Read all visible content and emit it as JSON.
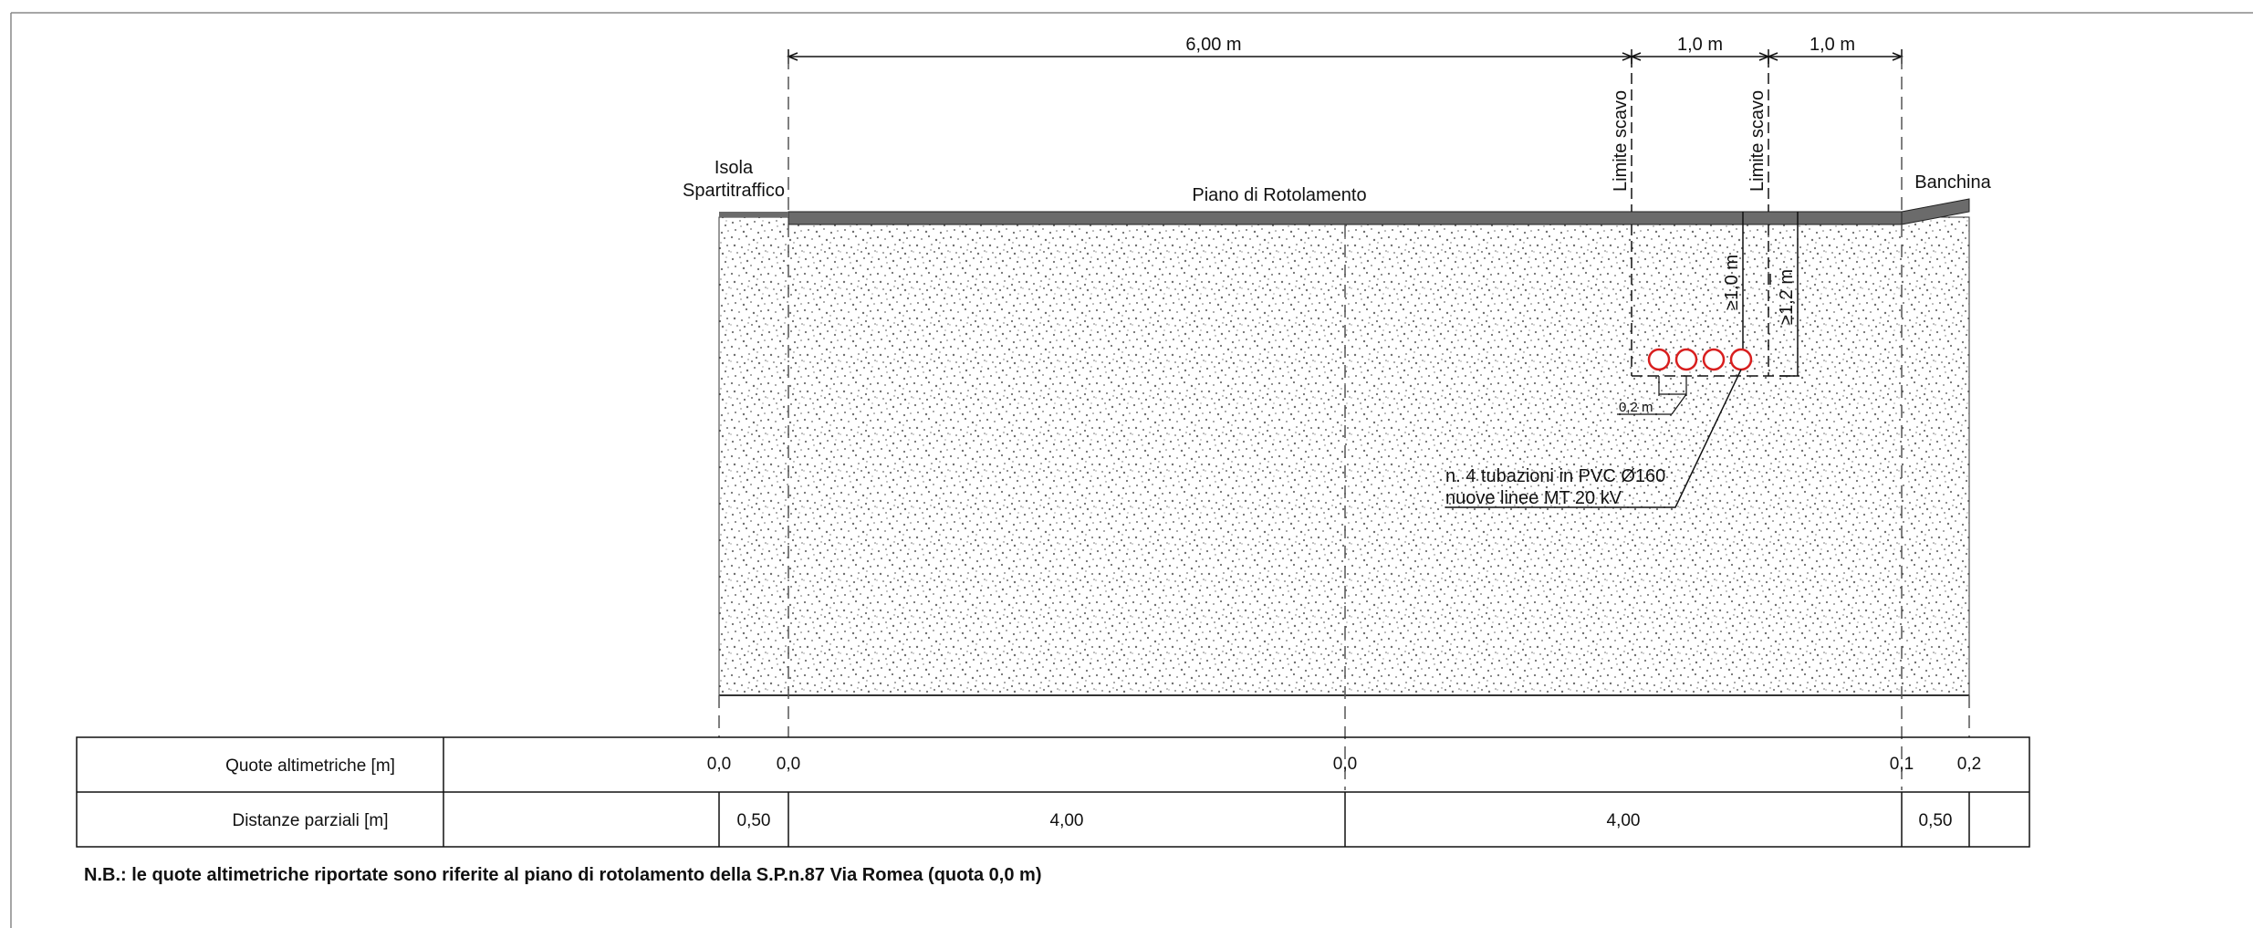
{
  "dimensions": {
    "top_width": "6,00 m",
    "trench_width": "1,0 m",
    "offset_width": "1,0 m",
    "depth_min": "≥1,0 m",
    "depth_max": "≥1,2 m",
    "pipe_spacing": "0,2 m"
  },
  "labels": {
    "isola_line1": "Isola",
    "isola_line2": "Spartitraffico",
    "road_surface": "Piano di Rotolamento",
    "shoulder": "Banchina",
    "trench_limit_left": "Limite scavo",
    "trench_limit_right": "Limite scavo",
    "pipes_line1": "n. 4 tubazioni in PVC Ø160",
    "pipes_line2": "nuove linee MT 20 kV"
  },
  "table": {
    "row1_label": "Quote altimetriche [m]",
    "row2_label": "Distanze parziali [m]",
    "elevations": [
      "0,0",
      "0,0",
      "0,0",
      "0,1",
      "0,2"
    ],
    "distances": [
      "0,50",
      "4,00",
      "4,00",
      "0,50"
    ]
  },
  "pipes": {
    "count": 4,
    "color": "#d81e1e"
  },
  "note": "N.B.: le quote altimetriche riportate sono riferite al piano di rotolamento della S.P.n.87 Via Romea (quota 0,0 m)"
}
